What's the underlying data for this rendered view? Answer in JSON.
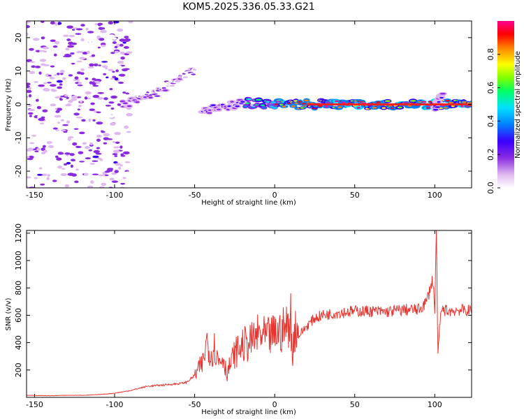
{
  "title": "KOM5.2025.336.05.33.G21",
  "colors": {
    "line": "#e8342f",
    "axis": "#000000"
  },
  "chart_data": [
    {
      "type": "heatmap",
      "xlabel": "Height of straight line (km)",
      "ylabel": "Frequency (Hz)",
      "xlim": [
        -155,
        123
      ],
      "ylim": [
        -25,
        25
      ],
      "x_ticks": [
        -150,
        -100,
        -50,
        0,
        50,
        100
      ],
      "x_tick_labels": [
        "-150",
        "-100",
        "-50",
        "0",
        "50",
        "100"
      ],
      "y_ticks": [
        -20,
        -10,
        0,
        10,
        20
      ],
      "y_tick_labels": [
        "-20",
        "-10",
        "0",
        "10",
        "20"
      ],
      "colorbar": {
        "label": "Normalized spectral amplitude",
        "range": [
          0,
          1
        ],
        "ticks": [
          0.0,
          0.2,
          0.4,
          0.6,
          0.8
        ],
        "tick_labels": [
          "0.0",
          "0.2",
          "0.4",
          "0.6",
          "0.8"
        ],
        "colormap": [
          "#ffffff",
          "#e0b8f0",
          "#8a2be2",
          "#3a00ff",
          "#0080ff",
          "#00e0ff",
          "#00ff60",
          "#80ff00",
          "#ffff00",
          "#ff8000",
          "#ff0000",
          "#ff0090"
        ]
      },
      "features": [
        {
          "x": [
            0,
            123
          ],
          "y": [
            0,
            0
          ],
          "amp": 0.95
        },
        {
          "x": [
            -20,
            0
          ],
          "y": [
            0.5,
            0
          ],
          "amp": 0.55
        },
        {
          "x": [
            -45,
            -20
          ],
          "y": [
            -2,
            0.5
          ],
          "amp": 0.3
        },
        {
          "x": [
            -95,
            -70
          ],
          "y": [
            0,
            4
          ],
          "amp": 0.25
        },
        {
          "x": [
            -70,
            -50
          ],
          "y": [
            5,
            10
          ],
          "amp": 0.2
        },
        {
          "x": [
            100,
            105
          ],
          "y": [
            -1,
            3
          ],
          "amp": 0.3
        }
      ]
    },
    {
      "type": "line",
      "xlabel": "Height of straight line (km)",
      "ylabel": "SNR (v/v)",
      "xlim": [
        -155,
        123
      ],
      "ylim": [
        0,
        1220
      ],
      "x_ticks": [
        -150,
        -100,
        -50,
        0,
        50,
        100
      ],
      "x_tick_labels": [
        "-150",
        "-100",
        "-50",
        "0",
        "50",
        "100"
      ],
      "y_ticks": [
        200,
        400,
        600,
        800,
        1000,
        1200
      ],
      "y_tick_labels": [
        "200",
        "400",
        "600",
        "800",
        "1000",
        "1200"
      ],
      "series": [
        {
          "x": [
            -155,
            -140,
            -130,
            -120,
            -110,
            -100,
            -90,
            -80,
            -70,
            -60,
            -55,
            -50,
            -45,
            -42,
            -40,
            -38,
            -35,
            -32,
            -30,
            -25,
            -20,
            -15,
            -10,
            -5,
            0,
            5,
            8,
            10,
            11,
            12,
            13,
            15,
            20,
            25,
            30,
            35,
            40,
            50,
            60,
            70,
            80,
            90,
            95,
            97,
            99,
            100,
            101,
            102,
            103,
            104,
            105,
            110,
            115,
            123
          ],
          "y": [
            15,
            12,
            15,
            15,
            20,
            30,
            50,
            80,
            90,
            100,
            110,
            160,
            250,
            430,
            300,
            380,
            260,
            300,
            170,
            320,
            380,
            400,
            460,
            430,
            460,
            490,
            520,
            600,
            250,
            480,
            520,
            450,
            520,
            580,
            600,
            610,
            620,
            630,
            630,
            625,
            640,
            640,
            700,
            800,
            860,
            620,
            1200,
            300,
            500,
            630,
            640,
            630,
            640,
            630
          ]
        }
      ]
    }
  ]
}
